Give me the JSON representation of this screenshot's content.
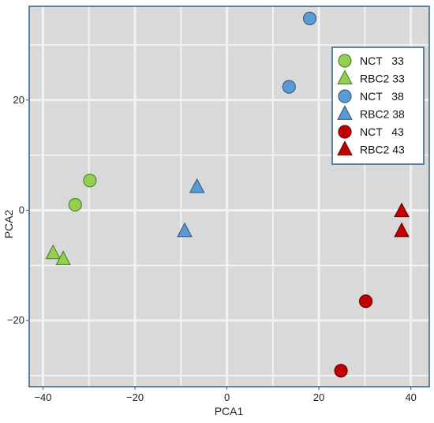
{
  "chart_data": {
    "type": "scatter",
    "xlabel": "PCA1",
    "ylabel": "PCA2",
    "xlim": [
      -43,
      44
    ],
    "ylim": [
      -32,
      37
    ],
    "x_ticks": [
      -40,
      -20,
      0,
      20,
      40
    ],
    "y_ticks": [
      -20,
      0,
      20
    ],
    "x_tick_labels": [
      "−40",
      "−20",
      "0",
      "20",
      "40"
    ],
    "y_tick_labels": [
      "−20",
      "0",
      "20"
    ],
    "grid": true,
    "legend_position": "top-right",
    "series": [
      {
        "name": "NCT   33",
        "marker": "circle",
        "color": "#92D050",
        "points": [
          [
            -29.8,
            5.4
          ],
          [
            -33,
            1.0
          ]
        ]
      },
      {
        "name": "RBC2 33",
        "marker": "triangle",
        "color": "#92D050",
        "points": [
          [
            -37.8,
            -7.8
          ],
          [
            -35.6,
            -8.9
          ]
        ]
      },
      {
        "name": "NCT   38",
        "marker": "circle",
        "color": "#5B9BD5",
        "points": [
          [
            18,
            34.8
          ],
          [
            13.5,
            22.4
          ]
        ]
      },
      {
        "name": "RBC2 38",
        "marker": "triangle",
        "color": "#5B9BD5",
        "points": [
          [
            -6.5,
            4.2
          ],
          [
            -9.2,
            -3.8
          ]
        ]
      },
      {
        "name": "NCT   43",
        "marker": "circle",
        "color": "#C00000",
        "points": [
          [
            30.2,
            -16.5
          ],
          [
            24.8,
            -29.1
          ]
        ]
      },
      {
        "name": "RBC2 43",
        "marker": "triangle",
        "color": "#C00000",
        "points": [
          [
            38,
            -0.2
          ],
          [
            38,
            -3.8
          ]
        ]
      }
    ]
  },
  "colors": {
    "panel_background": "#D9D9D9",
    "gridline": "#F2F2F2",
    "frame": "#2E5F8A",
    "legend_border": "#2E5F8A"
  }
}
